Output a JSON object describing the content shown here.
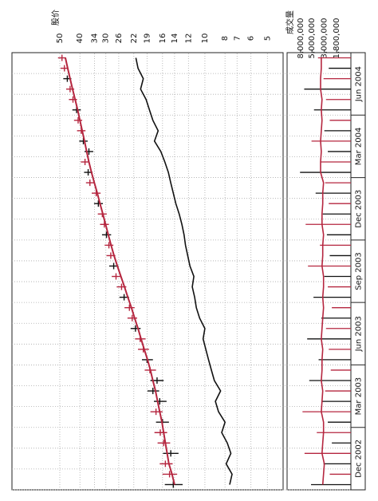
{
  "chart_data": {
    "type": "stock",
    "price_title": "股价",
    "volume_title": "成交量",
    "categories": [
      "Dec 2002",
      null,
      null,
      null,
      null,
      null,
      "Mar 2003",
      null,
      null,
      null,
      null,
      null,
      "Jun 2003",
      null,
      null,
      null,
      null,
      null,
      "Sep 2003",
      null,
      null,
      null,
      null,
      null,
      "Dec 2003",
      null,
      null,
      null,
      null,
      null,
      "Mar 2004",
      null,
      null,
      null,
      null,
      null,
      "Jun 2004",
      null,
      null,
      null,
      null,
      null
    ],
    "close": [
      14.2,
      14.8,
      15.5,
      14.6,
      15.8,
      16.4,
      16.0,
      17.2,
      16.5,
      17.8,
      17.0,
      18.4,
      19.0,
      19.8,
      20.5,
      21.6,
      22.4,
      23.1,
      24.5,
      25.2,
      26.8,
      27.5,
      28.4,
      29.0,
      29.8,
      30.5,
      31.2,
      32.6,
      33.4,
      35.8,
      36.5,
      37.8,
      36.2,
      38.5,
      39.4,
      40.8,
      41.5,
      43.2,
      44.6,
      46.0,
      47.5,
      48.8
    ],
    "high": [
      15.6,
      16.0,
      16.5,
      15.9,
      16.9,
      17.5,
      17.2,
      18.3,
      17.6,
      18.9,
      18.3,
      19.5,
      20.1,
      21.0,
      21.7,
      22.8,
      23.6,
      24.4,
      25.8,
      26.6,
      28.1,
      28.9,
      29.8,
      30.4,
      31.3,
      32.0,
      32.8,
      34.2,
      35.1,
      37.4,
      38.2,
      39.6,
      38.0,
      40.3,
      41.3,
      42.7,
      43.5,
      45.2,
      46.6,
      48.1,
      49.6,
      51.0
    ],
    "low": [
      12.8,
      13.6,
      14.3,
      13.4,
      14.7,
      15.2,
      14.9,
      16.0,
      15.3,
      16.6,
      15.8,
      17.2,
      17.8,
      18.6,
      19.3,
      20.4,
      21.2,
      21.8,
      23.2,
      23.9,
      25.5,
      26.1,
      27.0,
      27.6,
      28.3,
      29.0,
      29.7,
      31.0,
      31.8,
      34.2,
      34.8,
      36.1,
      34.5,
      36.7,
      37.6,
      39.0,
      39.6,
      41.3,
      42.6,
      44.0,
      45.5,
      46.7
    ],
    "ma": [
      14.0,
      14.4,
      14.9,
      15.2,
      15.5,
      15.8,
      16.1,
      16.5,
      16.9,
      17.3,
      17.8,
      18.3,
      18.9,
      19.6,
      20.3,
      21.0,
      21.8,
      22.6,
      23.5,
      24.4,
      25.4,
      26.4,
      27.4,
      28.3,
      29.2,
      30.1,
      31.0,
      32.0,
      33.0,
      34.1,
      35.2,
      36.2,
      37.1,
      38.0,
      39.0,
      40.0,
      41.0,
      42.2,
      43.4,
      44.6,
      45.8,
      47.0
    ],
    "relative": [
      7.6,
      7.4,
      7.9,
      7.5,
      7.8,
      8.3,
      8.0,
      8.6,
      8.9,
      8.4,
      9.0,
      9.3,
      9.6,
      9.9,
      10.2,
      10.0,
      10.6,
      11.0,
      11.2,
      11.5,
      11.3,
      11.8,
      12.1,
      12.4,
      12.6,
      12.9,
      13.3,
      13.8,
      14.2,
      14.6,
      15.0,
      15.6,
      16.3,
      17.5,
      16.8,
      17.8,
      18.5,
      19.2,
      20.4,
      19.8,
      21.0,
      21.5
    ],
    "volume": [
      5200000,
      2400000,
      3100000,
      6800000,
      2200000,
      4100000,
      2600000,
      7400000,
      3300000,
      2900000,
      5600000,
      2300000,
      3800000,
      2500000,
      6100000,
      2800000,
      3400000,
      2200000,
      4700000,
      2600000,
      3000000,
      5900000,
      2400000,
      3600000,
      2700000,
      6500000,
      3200000,
      2500000,
      4300000,
      2900000,
      8200000,
      3500000,
      2600000,
      5100000,
      3000000,
      2400000,
      4600000,
      2800000,
      6900000,
      3100000,
      2500000,
      3900000
    ],
    "volume_ma": [
      3200000,
      3100000,
      3000000,
      3300000,
      3200000,
      3100000,
      3100000,
      3400000,
      3300000,
      3200000,
      3400000,
      3300000,
      3300000,
      3200000,
      3400000,
      3300000,
      3200000,
      3100000,
      3200000,
      3100000,
      3100000,
      3300000,
      3200000,
      3200000,
      3100000,
      3300000,
      3300000,
      3200000,
      3200000,
      3100000,
      3500000,
      3500000,
      3400000,
      3500000,
      3400000,
      3300000,
      3400000,
      3300000,
      3500000,
      3500000,
      3400000,
      3400000
    ],
    "ylim": [
      4.2,
      85
    ],
    "yticks": [
      50,
      40,
      34,
      30,
      26,
      22,
      19,
      16,
      14,
      12,
      10,
      8,
      7,
      6,
      5
    ],
    "y2lim": [
      1000000,
      14000000
    ],
    "y2ticks": [
      {
        "value": 8000000,
        "label": "8,000,000"
      },
      {
        "value": 5000000,
        "label": "5,000,000"
      },
      {
        "value": 3000000,
        "label": "3,000,000"
      },
      {
        "value": 1800000,
        "label": "1,800,000"
      }
    ],
    "log_scale": true,
    "grid": true,
    "up_color": "#b5263f",
    "down_color": "#111111",
    "ma_color": "#b5263f",
    "relative_color": "#111111",
    "volume_ma_color": "#b5263f"
  }
}
